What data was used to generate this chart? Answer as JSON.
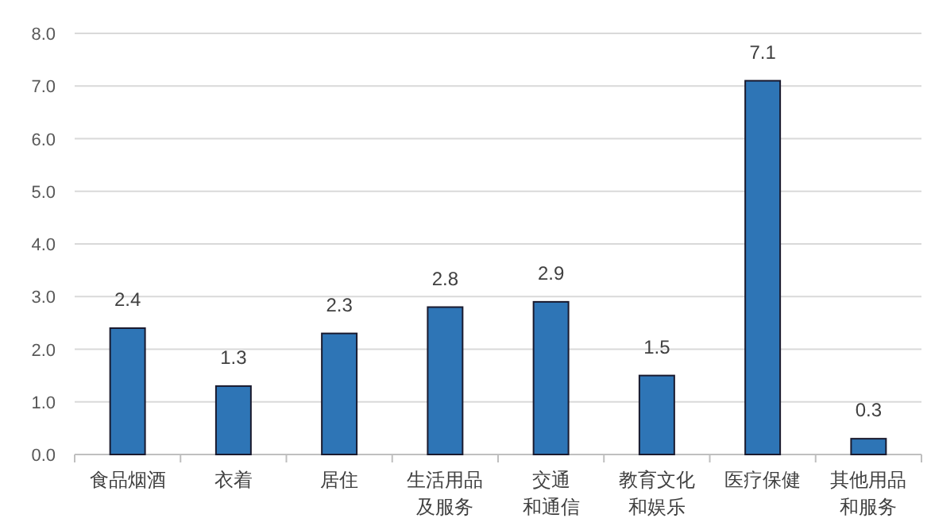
{
  "chart_data": {
    "type": "bar",
    "categories": [
      "食品烟酒",
      "衣着",
      "居住",
      "生活用品及服务",
      "交通和通信",
      "教育文化和娱乐",
      "医疗保健",
      "其他用品和服务"
    ],
    "values": [
      2.4,
      1.3,
      2.3,
      2.8,
      2.9,
      1.5,
      7.1,
      0.3
    ],
    "color": "#2e75b6",
    "ylim": [
      0,
      8
    ],
    "yticks": [
      {
        "value": 0,
        "label": "0.0"
      },
      {
        "value": 1,
        "label": "1.0"
      },
      {
        "value": 2,
        "label": "2.0"
      },
      {
        "value": 3,
        "label": "3.0"
      },
      {
        "value": 4,
        "label": "4.0"
      },
      {
        "value": 5,
        "label": "5.0"
      },
      {
        "value": 6,
        "label": "6.0"
      },
      {
        "value": 7,
        "label": "7.0"
      },
      {
        "value": 8,
        "label": "8.0"
      }
    ],
    "grid": "y",
    "data_labels": true
  }
}
